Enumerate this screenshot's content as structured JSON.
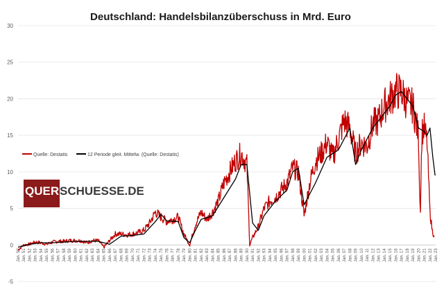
{
  "chart_data": {
    "type": "line",
    "title": "Deutschland:  Handelsbilanzüberschuss  in  Mrd. Euro",
    "xlabel": "",
    "ylabel": "",
    "ylim": [
      -5,
      30
    ],
    "yticks": [
      -5,
      0,
      5,
      10,
      15,
      20,
      25,
      30
    ],
    "grid": true,
    "legend_position": "left",
    "x_start_year": 1950,
    "x_end_year": 2023,
    "x_tick_labels": [
      "Jan. 50",
      "Jan. 51",
      "Jan. 52",
      "Jan. 53",
      "Jan. 54",
      "Jan. 55",
      "Jan. 56",
      "Jan. 57",
      "Jan. 58",
      "Jan. 59",
      "Jan. 60",
      "Jan. 61",
      "Jan. 62",
      "Jan. 63",
      "Jan. 64",
      "Jan. 65",
      "Jan. 66",
      "Jan. 67",
      "Jan. 68",
      "Jan. 69",
      "Jan. 70",
      "Jan. 71",
      "Jan. 72",
      "Jan. 73",
      "Jan. 74",
      "Jan. 75",
      "Jan. 76",
      "Jan. 77",
      "Jan. 78",
      "Jan. 79",
      "Jan. 80",
      "Jan. 81",
      "Jan. 82",
      "Jan. 83",
      "Jan. 84",
      "Jan. 85",
      "Jan. 86",
      "Jan. 87",
      "Jan. 88",
      "Jan. 89",
      "Jan. 90",
      "Jan. 91",
      "Jan. 92",
      "Jan. 93",
      "Jan. 94",
      "Jan. 95",
      "Jan. 96",
      "Jan. 97",
      "Jan. 98",
      "Jan. 99",
      "Jan. 00",
      "Jan. 01",
      "Jan. 02",
      "Jan. 03",
      "Jan. 04",
      "Jan. 05",
      "Jan. 06",
      "Jan. 07",
      "Jan. 08",
      "Jan. 09",
      "Jan. 10",
      "Jan. 11",
      "Jan. 12",
      "Jan. 13",
      "Jan. 14",
      "Jan. 15",
      "Jan. 16",
      "Jan. 17",
      "Jan. 18",
      "Jan. 19",
      "Jan. 20",
      "Jan. 21",
      "Jan. 22",
      "Jan. 23"
    ],
    "series": [
      {
        "name": "Quelle: Destatis",
        "color": "#c00000",
        "x": [
          1950,
          1951,
          1952,
          1953,
          1954,
          1955,
          1956,
          1957,
          1958,
          1959,
          1960,
          1961,
          1962,
          1963,
          1964,
          1965,
          1966,
          1967,
          1968,
          1969,
          1970,
          1971,
          1972,
          1973,
          1974,
          1975,
          1976,
          1977,
          1978,
          1979,
          1980,
          1981,
          1982,
          1983,
          1984,
          1985,
          1986,
          1987,
          1988,
          1989,
          1990,
          1990.5,
          1991,
          1992,
          1993,
          1994,
          1995,
          1996,
          1997,
          1998,
          1999,
          2000,
          2001,
          2002,
          2003,
          2004,
          2005,
          2006,
          2007,
          2008,
          2009,
          2010,
          2011,
          2012,
          2013,
          2014,
          2015,
          2016,
          2017,
          2018,
          2019,
          2020,
          2020.3,
          2020.6,
          2021,
          2021.5,
          2022,
          2022.4,
          2022.8
        ],
        "values": [
          -0.7,
          0.0,
          0.1,
          0.4,
          0.3,
          0.1,
          0.4,
          0.5,
          0.5,
          0.6,
          0.6,
          0.6,
          0.3,
          0.6,
          0.6,
          -0.3,
          0.6,
          1.5,
          1.5,
          1.4,
          1.5,
          1.7,
          2.0,
          3.0,
          4.5,
          3.8,
          3.2,
          3.5,
          3.8,
          1.5,
          0.0,
          2.8,
          4.5,
          3.5,
          4.5,
          6.0,
          8.5,
          10.0,
          11.5,
          12.5,
          11.0,
          0.0,
          1.0,
          2.5,
          5.0,
          6.0,
          6.5,
          7.5,
          8.5,
          10.5,
          10.0,
          4.0,
          8.5,
          11.5,
          12.5,
          14.0,
          12.0,
          14.5,
          17.0,
          16.0,
          12.5,
          14.0,
          13.5,
          16.5,
          17.0,
          19.0,
          20.0,
          21.0,
          21.0,
          19.5,
          19.0,
          15.0,
          4.0,
          15.5,
          16.0,
          14.0,
          4.5,
          2.0,
          1.0
        ]
      },
      {
        "name": "12 Periode gleit. Mittelw. (Quelle: Destatis)",
        "color": "#000000",
        "x": [
          1950,
          1952,
          1954,
          1956,
          1958,
          1960,
          1962,
          1964,
          1966,
          1968,
          1970,
          1972,
          1974,
          1975,
          1976,
          1978,
          1979,
          1980,
          1981,
          1982,
          1984,
          1986,
          1988,
          1989,
          1990,
          1991,
          1992,
          1993,
          1995,
          1997,
          1998,
          1999,
          2000,
          2001,
          2002,
          2004,
          2006,
          2008,
          2009,
          2010,
          2012,
          2014,
          2015,
          2016,
          2017,
          2018,
          2019,
          2020,
          2021,
          2021.5,
          2022,
          2022.5,
          2022.9
        ],
        "values": [
          -0.3,
          0.1,
          0.3,
          0.3,
          0.4,
          0.5,
          0.5,
          0.5,
          0.1,
          1.2,
          1.3,
          1.5,
          3.2,
          4.2,
          3.3,
          3.2,
          1.0,
          0.3,
          2.0,
          3.5,
          4.0,
          6.5,
          9.0,
          11.0,
          11.0,
          3.0,
          2.0,
          4.0,
          6.0,
          7.5,
          10.0,
          10.5,
          5.5,
          7.0,
          8.5,
          12.0,
          13.0,
          16.0,
          11.0,
          13.0,
          16.0,
          18.0,
          19.0,
          20.5,
          21.0,
          20.0,
          19.0,
          16.0,
          15.5,
          15.0,
          16.0,
          12.0,
          9.5
        ]
      }
    ]
  },
  "watermark": {
    "box_text": "QUER",
    "rest_text": "SCHUESSE.DE",
    "box_color": "#8b1a1a"
  }
}
